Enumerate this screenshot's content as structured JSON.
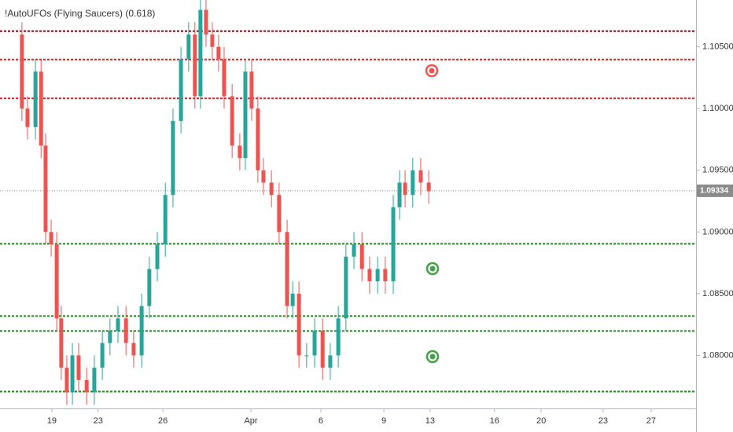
{
  "chart_data": {
    "type": "candlestick",
    "title": "!AutoUFOs (Flying Saucers) (0.618)",
    "up_color": "#26a69a",
    "down_color": "#ef5350",
    "x": [
      6.3,
      7.9,
      10.2,
      11.8,
      13.1,
      14.7,
      16.3,
      17.6,
      19.2,
      20.8,
      22.6,
      24.9,
      27.1,
      29.4,
      31.6,
      33.9,
      36.2,
      38.4,
      40.7,
      42.9,
      45.2,
      47.5,
      49.7,
      52.0,
      54.2,
      56.0,
      57.6,
      59.2,
      61.0,
      62.8,
      64.4,
      66.7,
      68.9,
      70.5,
      72.3,
      74.1,
      75.7,
      78.0,
      80.2,
      82.5,
      84.1,
      85.9,
      88.1,
      90.4,
      92.7,
      94.9,
      97.2,
      99.4,
      101.7,
      104.0,
      106.2,
      108.5,
      110.7,
      113.0,
      114.8,
      116.4,
      118.6,
      120.9,
      123.2
    ],
    "open": [
      1.106,
      1.1,
      1.0985,
      1.103,
      1.097,
      1.09,
      1.089,
      1.083,
      1.079,
      1.077,
      1.08,
      1.078,
      1.077,
      1.079,
      1.081,
      1.082,
      1.083,
      1.081,
      1.08,
      1.084,
      1.087,
      1.089,
      1.093,
      1.099,
      1.104,
      1.106,
      1.101,
      1.108,
      1.106,
      1.105,
      1.104,
      1.101,
      1.097,
      1.096,
      1.103,
      1.1,
      1.095,
      1.094,
      1.093,
      1.09,
      1.084,
      1.085,
      1.08,
      1.08,
      1.082,
      1.079,
      1.08,
      1.083,
      1.088,
      1.089,
      1.087,
      1.086,
      1.087,
      1.086,
      1.092,
      1.094,
      1.093,
      1.095,
      1.094
    ],
    "high": [
      1.107,
      1.101,
      1.104,
      1.104,
      1.098,
      1.091,
      1.09,
      1.084,
      1.08,
      1.081,
      1.081,
      1.079,
      1.08,
      1.082,
      1.083,
      1.084,
      1.084,
      1.082,
      1.085,
      1.088,
      1.09,
      1.094,
      1.1,
      1.105,
      1.107,
      1.107,
      1.109,
      1.109,
      1.107,
      1.106,
      1.105,
      1.102,
      1.098,
      1.104,
      1.104,
      1.101,
      1.096,
      1.095,
      1.094,
      1.091,
      1.086,
      1.086,
      1.081,
      1.083,
      1.083,
      1.081,
      1.084,
      1.089,
      1.09,
      1.09,
      1.088,
      1.088,
      1.088,
      1.093,
      1.095,
      1.095,
      1.096,
      1.096,
      1.095
    ],
    "low": [
      1.099,
      1.0975,
      1.0975,
      1.096,
      1.089,
      1.088,
      1.082,
      1.078,
      1.076,
      1.076,
      1.077,
      1.076,
      1.076,
      1.078,
      1.08,
      1.081,
      1.08,
      1.079,
      1.079,
      1.083,
      1.086,
      1.088,
      1.092,
      1.098,
      1.103,
      1.1,
      1.1,
      1.105,
      1.104,
      1.103,
      1.1,
      1.096,
      1.095,
      1.095,
      1.099,
      1.094,
      1.093,
      1.092,
      1.089,
      1.083,
      1.083,
      1.079,
      1.079,
      1.079,
      1.078,
      1.078,
      1.079,
      1.082,
      1.087,
      1.086,
      1.085,
      1.085,
      1.085,
      1.085,
      1.091,
      1.092,
      1.092,
      1.093,
      1.0923
    ],
    "close": [
      1.1,
      1.0985,
      1.103,
      1.097,
      1.09,
      1.089,
      1.083,
      1.079,
      1.077,
      1.08,
      1.078,
      1.077,
      1.079,
      1.081,
      1.082,
      1.083,
      1.081,
      1.08,
      1.084,
      1.087,
      1.089,
      1.093,
      1.099,
      1.104,
      1.106,
      1.101,
      1.108,
      1.106,
      1.105,
      1.104,
      1.101,
      1.097,
      1.096,
      1.103,
      1.1,
      1.095,
      1.094,
      1.093,
      1.09,
      1.084,
      1.085,
      1.08,
      1.08,
      1.082,
      1.079,
      1.08,
      1.083,
      1.088,
      1.089,
      1.087,
      1.086,
      1.087,
      1.086,
      1.092,
      1.094,
      1.093,
      1.095,
      1.094,
      1.0933
    ],
    "xlim": [
      0,
      200
    ],
    "xticks": [
      {
        "value": 14.9,
        "label": "19"
      },
      {
        "value": 28.2,
        "label": "23"
      },
      {
        "value": 46.8,
        "label": "26"
      },
      {
        "value": 72.1,
        "label": "Apr"
      },
      {
        "value": 92.2,
        "label": "6"
      },
      {
        "value": 110.3,
        "label": "9"
      },
      {
        "value": 123.6,
        "label": "13"
      },
      {
        "value": 142.1,
        "label": "16"
      },
      {
        "value": 155.5,
        "label": "20"
      },
      {
        "value": 173.3,
        "label": "23"
      },
      {
        "value": 187.1,
        "label": "27"
      }
    ],
    "ylim": [
      1.0757,
      1.1088
    ],
    "yticks": [
      {
        "value": 1.08,
        "label": "1.08000"
      },
      {
        "value": 1.085,
        "label": "1.08500"
      },
      {
        "value": 1.09,
        "label": "1.09000"
      },
      {
        "value": 1.095,
        "label": "1.09500"
      },
      {
        "value": 1.1,
        "label": "1.10000"
      },
      {
        "value": 1.105,
        "label": "1.10500"
      }
    ],
    "levels": [
      {
        "value": 1.10628,
        "color": "#8b0000"
      },
      {
        "value": 1.10398,
        "color": "#e02020"
      },
      {
        "value": 1.10083,
        "color": "#e02020"
      },
      {
        "value": 1.08904,
        "color": "#1a8a1a"
      },
      {
        "value": 1.08319,
        "color": "#1a8a1a"
      },
      {
        "value": 1.08198,
        "color": "#1a8a1a"
      },
      {
        "value": 1.07707,
        "color": "#1a8a1a"
      }
    ],
    "last_price": {
      "value": 1.09334,
      "label": "1.09334"
    }
  }
}
